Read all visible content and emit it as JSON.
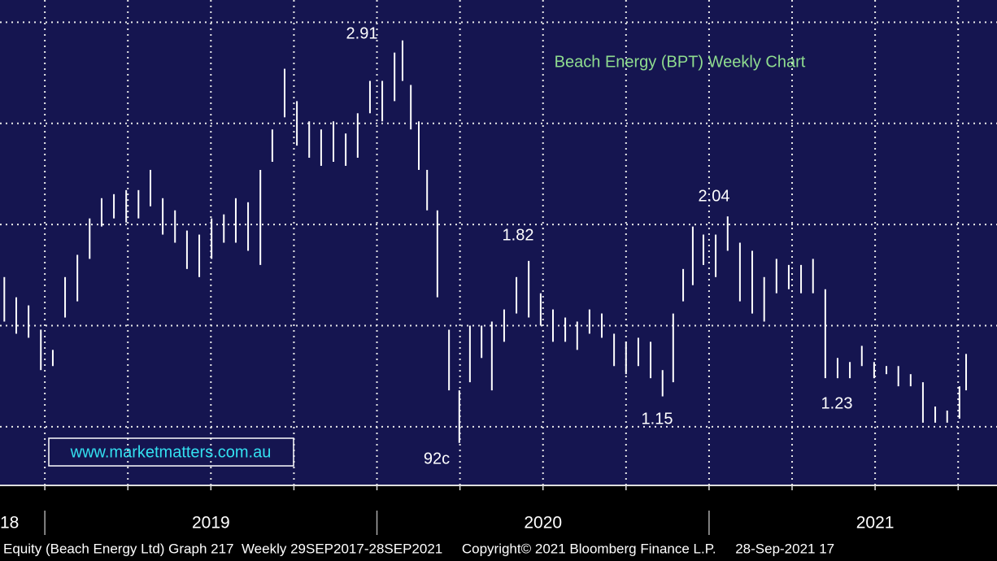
{
  "chart_data": {
    "type": "hilo",
    "title": "Beach Energy (BPT) Weekly Chart",
    "link": "www.marketmatters.com.au",
    "footer": "Equity (Beach Energy Ltd) Graph 217  Weekly 29SEP2017-28SEP2021     Copyright© 2021 Bloomberg Finance L.P.     28-Sep-2021 17",
    "annotations": [
      "2.91",
      "1.82",
      "2.04",
      "92c",
      "1.15",
      "1.23"
    ],
    "color": "#ffffff",
    "grid": true,
    "xlim": [
      2018.865,
      2021.867
    ],
    "ylim": [
      0.71,
      3.11
    ],
    "yticks": [
      1,
      1.5,
      2,
      2.5,
      3
    ],
    "xticks": [
      {
        "value": 2018,
        "label": "18"
      },
      2019,
      2020,
      2021
    ],
    "xminor_ticks": [
      2019,
      2019.25,
      2019.5,
      2019.75,
      2020,
      2020.25,
      2020.5,
      2020.75,
      2021,
      2021.25,
      2021.5,
      2021.75
    ],
    "x": [
      2018.878,
      2018.914,
      2018.951,
      2018.988,
      2019.024,
      2019.061,
      2019.098,
      2019.135,
      2019.171,
      2019.208,
      2019.245,
      2019.282,
      2019.318,
      2019.355,
      2019.392,
      2019.428,
      2019.465,
      2019.502,
      2019.539,
      2019.575,
      2019.612,
      2019.649,
      2019.685,
      2019.722,
      2019.759,
      2019.796,
      2019.832,
      2019.869,
      2019.906,
      2019.942,
      2019.979,
      2020.016,
      2020.053,
      2020.077,
      2020.102,
      2020.126,
      2020.151,
      2020.182,
      2020.217,
      2020.248,
      2020.28,
      2020.315,
      2020.346,
      2020.383,
      2020.42,
      2020.457,
      2020.493,
      2020.53,
      2020.567,
      2020.603,
      2020.64,
      2020.677,
      2020.714,
      2020.75,
      2020.787,
      2020.824,
      2020.86,
      2020.892,
      2020.922,
      2020.951,
      2020.983,
      2021.02,
      2021.056,
      2021.093,
      2021.13,
      2021.166,
      2021.203,
      2021.24,
      2021.277,
      2021.313,
      2021.35,
      2021.387,
      2021.424,
      2021.46,
      2021.497,
      2021.534,
      2021.57,
      2021.607,
      2021.644,
      2021.681,
      2021.717,
      2021.754,
      2021.774
    ],
    "high": [
      1.74,
      1.64,
      1.6,
      1.48,
      1.38,
      1.74,
      1.85,
      2.03,
      2.13,
      2.15,
      2.17,
      2.17,
      2.27,
      2.13,
      2.07,
      1.97,
      1.95,
      2.03,
      2.05,
      2.13,
      2.11,
      2.27,
      2.47,
      2.77,
      2.61,
      2.51,
      2.47,
      2.51,
      2.45,
      2.55,
      2.71,
      2.71,
      2.85,
      2.91,
      2.69,
      2.51,
      2.27,
      2.07,
      1.48,
      1.18,
      1.5,
      1.5,
      1.52,
      1.58,
      1.74,
      1.82,
      1.66,
      1.58,
      1.54,
      1.52,
      1.58,
      1.56,
      1.46,
      1.42,
      1.44,
      1.42,
      1.28,
      1.56,
      1.78,
      1.99,
      1.95,
      1.95,
      2.04,
      1.91,
      1.87,
      1.74,
      1.83,
      1.8,
      1.8,
      1.83,
      1.68,
      1.34,
      1.32,
      1.4,
      1.32,
      1.3,
      1.3,
      1.26,
      1.22,
      1.1,
      1.08,
      1.2,
      1.36
    ],
    "low": [
      1.52,
      1.46,
      1.44,
      1.28,
      1.3,
      1.54,
      1.62,
      1.83,
      1.99,
      2.03,
      2.01,
      2.03,
      2.09,
      1.95,
      1.91,
      1.78,
      1.74,
      1.83,
      1.91,
      1.91,
      1.87,
      1.8,
      2.31,
      2.53,
      2.39,
      2.33,
      2.29,
      2.31,
      2.29,
      2.33,
      2.55,
      2.51,
      2.61,
      2.71,
      2.47,
      2.27,
      2.07,
      1.64,
      1.18,
      0.92,
      1.22,
      1.34,
      1.18,
      1.42,
      1.56,
      1.54,
      1.5,
      1.42,
      1.42,
      1.38,
      1.46,
      1.44,
      1.3,
      1.26,
      1.3,
      1.24,
      1.15,
      1.22,
      1.62,
      1.7,
      1.8,
      1.74,
      1.87,
      1.62,
      1.56,
      1.52,
      1.66,
      1.68,
      1.66,
      1.66,
      1.24,
      1.24,
      1.24,
      1.3,
      1.24,
      1.26,
      1.2,
      1.2,
      1.02,
      1.02,
      1.02,
      1.04,
      1.18
    ]
  }
}
